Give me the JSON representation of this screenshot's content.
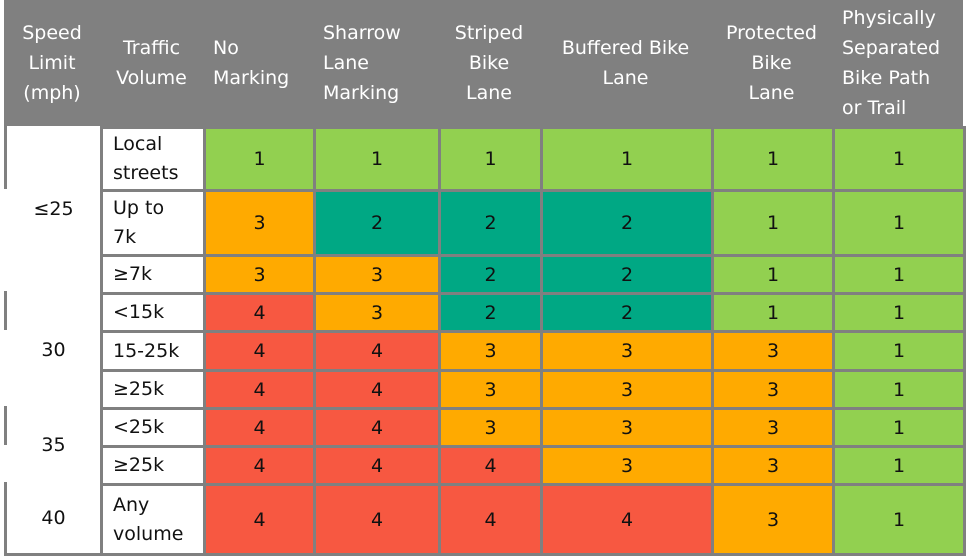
{
  "colors": {
    "header_bg": "#808080",
    "grid": "#808080",
    "level_1": "#92D050",
    "level_2": "#00A884",
    "level_3": "#FFAA00",
    "level_4": "#F75841"
  },
  "headers": [
    "Speed Limit (mph)",
    "Traffic Volume",
    "No Marking",
    "Sharrow Lane Marking",
    "Striped Bike Lane",
    "Buffered  Bike Lane",
    "Protected Bike Lane",
    "Physically Separated Bike Path or Trail"
  ],
  "header_lines": [
    [
      "Speed",
      "Limit",
      "(mph)"
    ],
    [
      "Traffic",
      "Volume"
    ],
    [
      "No",
      "Marking"
    ],
    [
      "Sharrow",
      "Lane",
      "Marking"
    ],
    [
      "Striped",
      "Bike",
      "Lane"
    ],
    [
      "Buffered  Bike",
      "Lane"
    ],
    [
      "Protected",
      "Bike",
      "Lane"
    ],
    [
      "Physically",
      "Separated",
      "Bike Path",
      "or Trail"
    ]
  ],
  "speed_groups": [
    {
      "label": "≤25",
      "rows": [
        0,
        1,
        2
      ]
    },
    {
      "label": "30",
      "rows": [
        3,
        4,
        5
      ]
    },
    {
      "label": "35",
      "rows": [
        6,
        7
      ]
    },
    {
      "label": "40",
      "rows": [
        8
      ]
    }
  ],
  "rows": [
    {
      "volume": "Local streets",
      "volume_lines": [
        "Local",
        "streets"
      ],
      "values": [
        1,
        1,
        1,
        1,
        1,
        1
      ]
    },
    {
      "volume": "Up to 7k",
      "volume_lines": [
        "Up to",
        "7k"
      ],
      "values": [
        3,
        2,
        2,
        2,
        1,
        1
      ]
    },
    {
      "volume": "≥7k",
      "volume_lines": [
        "≥7k"
      ],
      "values": [
        3,
        3,
        2,
        2,
        1,
        1
      ]
    },
    {
      "volume": "<15k",
      "volume_lines": [
        "<15k"
      ],
      "values": [
        4,
        3,
        2,
        2,
        1,
        1
      ]
    },
    {
      "volume": "15-25k",
      "volume_lines": [
        "15-25k"
      ],
      "values": [
        4,
        4,
        3,
        3,
        3,
        1
      ]
    },
    {
      "volume": "≥25k",
      "volume_lines": [
        "≥25k"
      ],
      "values": [
        4,
        4,
        3,
        3,
        3,
        1
      ]
    },
    {
      "volume": "<25k",
      "volume_lines": [
        "<25k"
      ],
      "values": [
        4,
        4,
        3,
        3,
        3,
        1
      ]
    },
    {
      "volume": "≥25k",
      "volume_lines": [
        "≥25k"
      ],
      "values": [
        4,
        4,
        4,
        3,
        3,
        1
      ]
    },
    {
      "volume": "Any volume",
      "volume_lines": [
        "Any",
        "volume"
      ],
      "values": [
        4,
        4,
        4,
        4,
        3,
        1
      ]
    }
  ]
}
